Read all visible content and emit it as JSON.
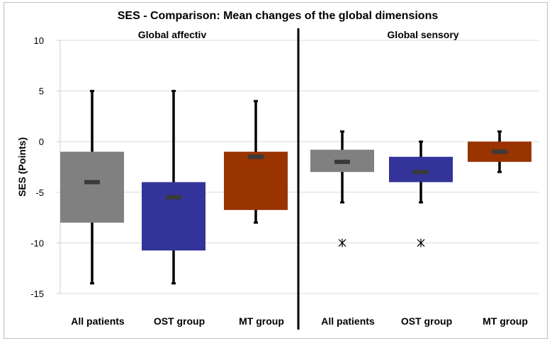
{
  "chart_data": {
    "type": "box",
    "title": "SES - Comparison: Mean changes of the global dimensions",
    "ylabel": "SES (Points)",
    "xlabel": "",
    "ylim": [
      -15,
      10
    ],
    "yticks": [
      10,
      5,
      0,
      -5,
      -10,
      -15
    ],
    "grid": true,
    "panels": [
      {
        "title": "Global affectiv",
        "groups": [
          {
            "category": "All patients",
            "color": "#808080",
            "whisker_high": 5,
            "box_high": -1,
            "mean": -4,
            "box_low": -8,
            "whisker_low": -14,
            "outliers": []
          },
          {
            "category": "OST group",
            "color": "#333399",
            "whisker_high": 5,
            "box_high": -4,
            "mean": -5.5,
            "box_low": -10.75,
            "whisker_low": -14,
            "outliers": []
          },
          {
            "category": "MT group",
            "color": "#993300",
            "whisker_high": 4,
            "box_high": -1,
            "mean": -1.5,
            "box_low": -6.75,
            "whisker_low": -8,
            "outliers": []
          }
        ]
      },
      {
        "title": "Global sensory",
        "groups": [
          {
            "category": "All patients",
            "color": "#808080",
            "whisker_high": 1,
            "box_high": -0.8,
            "mean": -2,
            "box_low": -3,
            "whisker_low": -6,
            "outliers": [
              -10
            ]
          },
          {
            "category": "OST group",
            "color": "#333399",
            "whisker_high": 0,
            "box_high": -1.5,
            "mean": -3,
            "box_low": -4,
            "whisker_low": -6,
            "outliers": [
              -10
            ]
          },
          {
            "category": "MT group",
            "color": "#993300",
            "whisker_high": 1,
            "box_high": 0,
            "mean": -1,
            "box_low": -2,
            "whisker_low": -3,
            "outliers": []
          }
        ]
      }
    ]
  }
}
